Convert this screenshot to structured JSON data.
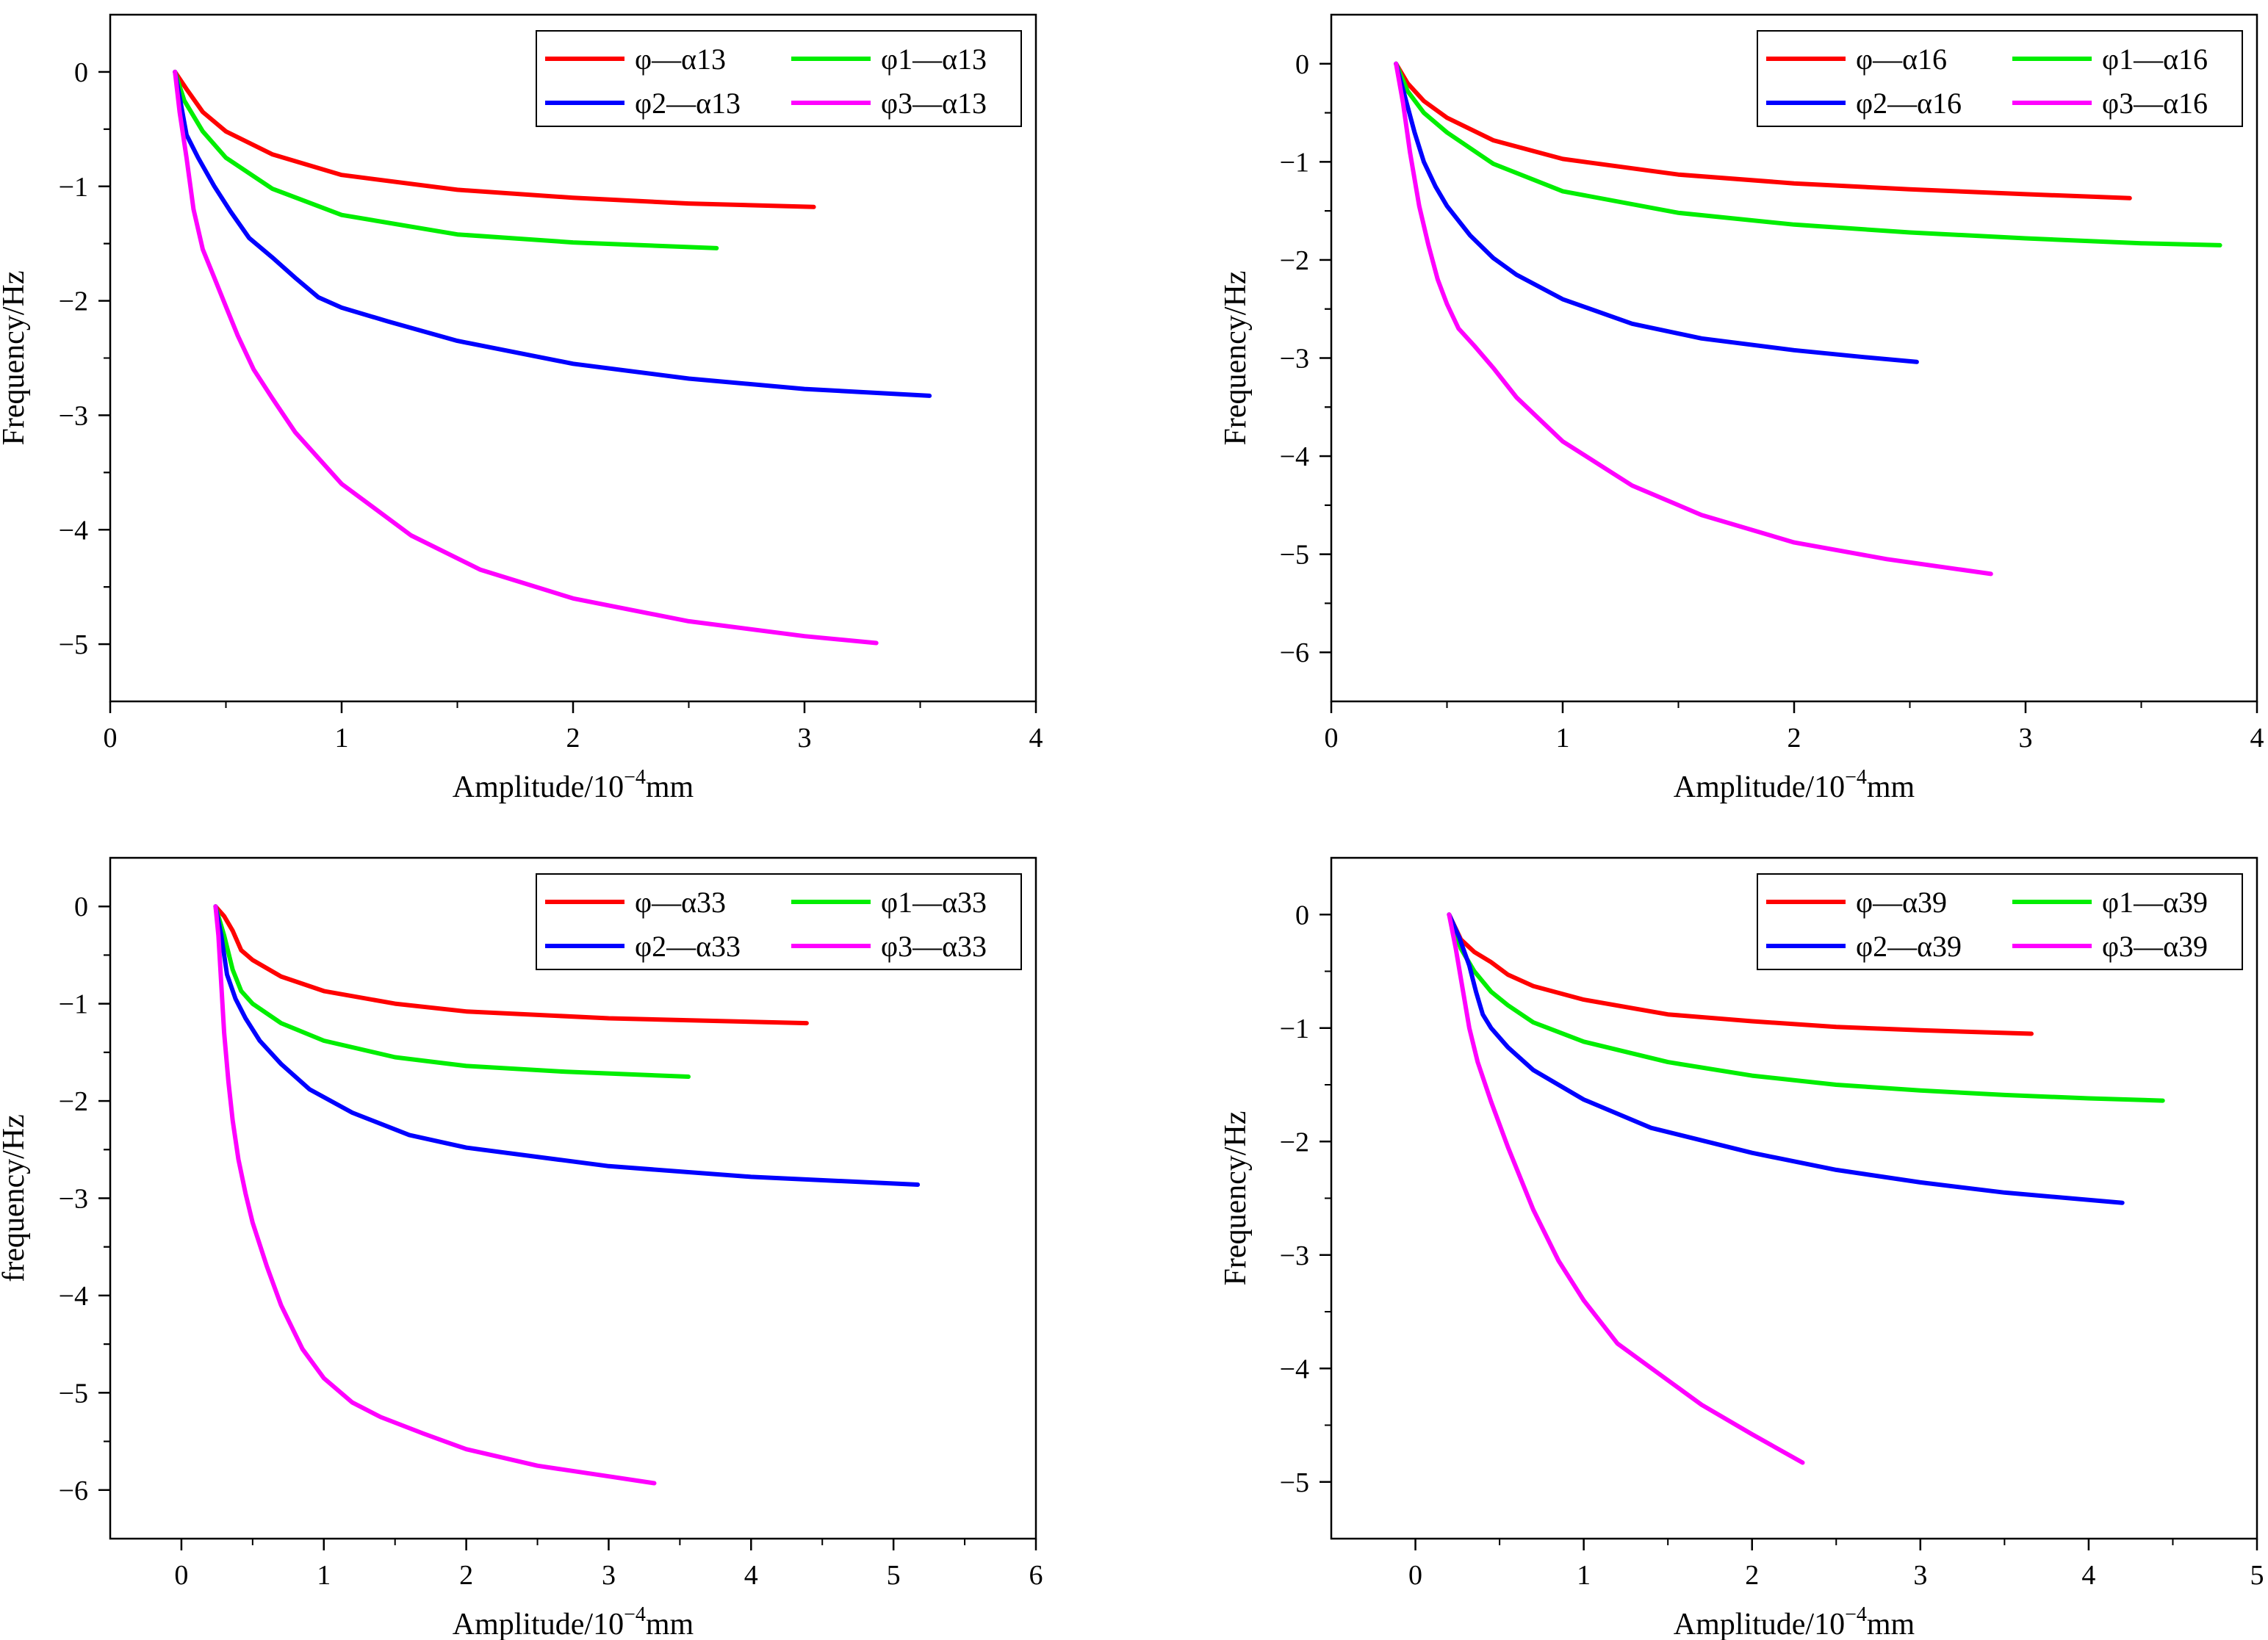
{
  "figure": {
    "chart_data": [
      {
        "type": "line",
        "title": "",
        "xlabel": "Amplitude/10",
        "xlabel_sup": "−4",
        "xlabel_unit": "mm",
        "ylabel": "Frequency/Hz",
        "xlim": [
          0,
          4
        ],
        "ylim": [
          -5.5,
          0.5
        ],
        "xticks": [
          0,
          1,
          2,
          3,
          4
        ],
        "yticks": [
          0,
          -1,
          -2,
          -3,
          -4,
          -5
        ],
        "xtick_labels": [
          "0",
          "1",
          "2",
          "3",
          "4"
        ],
        "ytick_labels": [
          "0",
          "−1",
          "−2",
          "−3",
          "−4",
          "−5"
        ],
        "legend_position": "top-right",
        "series": [
          {
            "name": "φ—α13",
            "color": "#ff0000",
            "x": [
              0.28,
              0.33,
              0.4,
              0.5,
              0.7,
              1.0,
              1.5,
              2.0,
              2.5,
              3.04
            ],
            "y": [
              0,
              -0.15,
              -0.35,
              -0.52,
              -0.72,
              -0.9,
              -1.03,
              -1.1,
              -1.15,
              -1.18
            ]
          },
          {
            "name": "φ1—α13",
            "color": "#00ee00",
            "x": [
              0.28,
              0.32,
              0.4,
              0.5,
              0.7,
              1.0,
              1.5,
              2.0,
              2.62
            ],
            "y": [
              0,
              -0.25,
              -0.52,
              -0.75,
              -1.02,
              -1.25,
              -1.42,
              -1.49,
              -1.54
            ]
          },
          {
            "name": "φ2—α13",
            "color": "#0000ff",
            "x": [
              0.28,
              0.3,
              0.33,
              0.38,
              0.45,
              0.52,
              0.6,
              0.7,
              0.8,
              0.9,
              1.0,
              1.2,
              1.5,
              2.0,
              2.5,
              3.0,
              3.54
            ],
            "y": [
              0,
              -0.22,
              -0.55,
              -0.75,
              -1.0,
              -1.22,
              -1.45,
              -1.62,
              -1.8,
              -1.97,
              -2.06,
              -2.18,
              -2.35,
              -2.55,
              -2.68,
              -2.77,
              -2.83
            ]
          },
          {
            "name": "φ3—α13",
            "color": "#ff00ff",
            "x": [
              0.28,
              0.3,
              0.33,
              0.36,
              0.4,
              0.45,
              0.5,
              0.55,
              0.62,
              0.7,
              0.8,
              1.0,
              1.3,
              1.6,
              2.0,
              2.5,
              3.0,
              3.31
            ],
            "y": [
              0,
              -0.35,
              -0.75,
              -1.2,
              -1.55,
              -1.8,
              -2.05,
              -2.3,
              -2.6,
              -2.85,
              -3.15,
              -3.6,
              -4.05,
              -4.35,
              -4.6,
              -4.8,
              -4.93,
              -4.99
            ]
          }
        ]
      },
      {
        "type": "line",
        "title": "",
        "xlabel": "Amplitude/10",
        "xlabel_sup": "−4",
        "xlabel_unit": "mm",
        "ylabel": "Frequency/Hz",
        "xlim": [
          0,
          4
        ],
        "ylim": [
          -6.5,
          0.5
        ],
        "xticks": [
          0,
          1,
          2,
          3,
          4
        ],
        "yticks": [
          0,
          -1,
          -2,
          -3,
          -4,
          -5,
          -6
        ],
        "xtick_labels": [
          "0",
          "1",
          "2",
          "3",
          "4"
        ],
        "ytick_labels": [
          "0",
          "−1",
          "−2",
          "−3",
          "−4",
          "−5",
          "−6"
        ],
        "legend_position": "top-right",
        "series": [
          {
            "name": "φ—α16",
            "color": "#ff0000",
            "x": [
              0.28,
              0.33,
              0.4,
              0.5,
              0.7,
              1.0,
              1.5,
              2.0,
              2.5,
              3.0,
              3.45
            ],
            "y": [
              0,
              -0.2,
              -0.38,
              -0.55,
              -0.78,
              -0.97,
              -1.13,
              -1.22,
              -1.28,
              -1.33,
              -1.37
            ]
          },
          {
            "name": "φ1—α16",
            "color": "#00ee00",
            "x": [
              0.28,
              0.33,
              0.4,
              0.5,
              0.7,
              1.0,
              1.5,
              2.0,
              2.5,
              3.0,
              3.5,
              3.84
            ],
            "y": [
              0,
              -0.28,
              -0.5,
              -0.7,
              -1.02,
              -1.3,
              -1.52,
              -1.64,
              -1.72,
              -1.78,
              -1.83,
              -1.85
            ]
          },
          {
            "name": "φ2—α16",
            "color": "#0000ff",
            "x": [
              0.28,
              0.32,
              0.36,
              0.4,
              0.45,
              0.5,
              0.6,
              0.7,
              0.8,
              1.0,
              1.3,
              1.6,
              2.0,
              2.3,
              2.53
            ],
            "y": [
              0,
              -0.35,
              -0.7,
              -1.0,
              -1.25,
              -1.45,
              -1.75,
              -1.98,
              -2.15,
              -2.4,
              -2.65,
              -2.8,
              -2.92,
              -2.99,
              -3.04
            ]
          },
          {
            "name": "φ3—α16",
            "color": "#ff00ff",
            "x": [
              0.28,
              0.31,
              0.34,
              0.38,
              0.42,
              0.46,
              0.5,
              0.55,
              0.62,
              0.7,
              0.8,
              1.0,
              1.3,
              1.6,
              2.0,
              2.4,
              2.85
            ],
            "y": [
              0,
              -0.4,
              -0.9,
              -1.45,
              -1.85,
              -2.2,
              -2.45,
              -2.7,
              -2.88,
              -3.1,
              -3.4,
              -3.85,
              -4.3,
              -4.6,
              -4.88,
              -5.05,
              -5.2
            ]
          }
        ]
      },
      {
        "type": "line",
        "title": "",
        "xlabel": "Amplitude/10",
        "xlabel_sup": "−4",
        "xlabel_unit": "mm",
        "ylabel": "frequency/Hz",
        "xlim": [
          -0.5,
          6
        ],
        "ylim": [
          -6.5,
          0.5
        ],
        "xticks": [
          0,
          1,
          2,
          3,
          4,
          5,
          6
        ],
        "yticks": [
          0,
          -1,
          -2,
          -3,
          -4,
          -5,
          -6
        ],
        "xtick_labels": [
          "0",
          "1",
          "2",
          "3",
          "4",
          "5",
          "6"
        ],
        "ytick_labels": [
          "0",
          "−1",
          "−2",
          "−3",
          "−4",
          "−5",
          "−6"
        ],
        "legend_position": "top-right",
        "series": [
          {
            "name": "φ—α33",
            "color": "#ff0000",
            "x": [
              0.24,
              0.3,
              0.36,
              0.42,
              0.5,
              0.7,
              1.0,
              1.5,
              2.0,
              3.0,
              4.39
            ],
            "y": [
              0,
              -0.1,
              -0.25,
              -0.45,
              -0.55,
              -0.72,
              -0.87,
              -1.0,
              -1.08,
              -1.15,
              -1.2
            ]
          },
          {
            "name": "φ1—α33",
            "color": "#00ee00",
            "x": [
              0.24,
              0.3,
              0.36,
              0.42,
              0.5,
              0.7,
              1.0,
              1.5,
              2.0,
              2.7,
              3.56
            ],
            "y": [
              0,
              -0.3,
              -0.65,
              -0.87,
              -1.0,
              -1.2,
              -1.38,
              -1.55,
              -1.64,
              -1.7,
              -1.75
            ]
          },
          {
            "name": "φ2—α33",
            "color": "#0000ff",
            "x": [
              0.24,
              0.28,
              0.32,
              0.38,
              0.45,
              0.55,
              0.7,
              0.9,
              1.2,
              1.6,
              2.0,
              3.0,
              4.0,
              5.17
            ],
            "y": [
              0,
              -0.3,
              -0.7,
              -0.95,
              -1.15,
              -1.38,
              -1.62,
              -1.88,
              -2.12,
              -2.35,
              -2.48,
              -2.67,
              -2.78,
              -2.86
            ]
          },
          {
            "name": "φ3—α33",
            "color": "#ff00ff",
            "x": [
              0.24,
              0.26,
              0.28,
              0.3,
              0.33,
              0.36,
              0.4,
              0.45,
              0.5,
              0.6,
              0.7,
              0.85,
              1.0,
              1.2,
              1.4,
              1.7,
              2.0,
              2.5,
              3.0,
              3.32
            ],
            "y": [
              0,
              -0.3,
              -0.8,
              -1.3,
              -1.8,
              -2.2,
              -2.6,
              -2.95,
              -3.25,
              -3.7,
              -4.1,
              -4.55,
              -4.85,
              -5.1,
              -5.25,
              -5.42,
              -5.58,
              -5.75,
              -5.86,
              -5.93
            ]
          }
        ]
      },
      {
        "type": "line",
        "title": "",
        "xlabel": "Amplitude/10",
        "xlabel_sup": "−4",
        "xlabel_unit": "mm",
        "ylabel": "Frequency/Hz",
        "xlim": [
          -0.5,
          5
        ],
        "ylim": [
          -5.5,
          0.5
        ],
        "xticks": [
          0,
          1,
          2,
          3,
          4,
          5
        ],
        "yticks": [
          0,
          -1,
          -2,
          -3,
          -4,
          -5
        ],
        "xtick_labels": [
          "0",
          "1",
          "2",
          "3",
          "4",
          "5"
        ],
        "ytick_labels": [
          "0",
          "−1",
          "−2",
          "−3",
          "−4",
          "−5"
        ],
        "legend_position": "top-right",
        "series": [
          {
            "name": "φ—α39",
            "color": "#ff0000",
            "x": [
              0.2,
              0.27,
              0.35,
              0.45,
              0.55,
              0.7,
              1.0,
              1.5,
              2.0,
              2.5,
              3.0,
              3.66
            ],
            "y": [
              0,
              -0.22,
              -0.33,
              -0.42,
              -0.53,
              -0.63,
              -0.75,
              -0.88,
              -0.94,
              -0.99,
              -1.02,
              -1.05
            ]
          },
          {
            "name": "φ1—α39",
            "color": "#00ee00",
            "x": [
              0.2,
              0.27,
              0.35,
              0.45,
              0.55,
              0.7,
              1.0,
              1.5,
              2.0,
              2.5,
              3.0,
              3.5,
              4.0,
              4.44
            ],
            "y": [
              0,
              -0.3,
              -0.5,
              -0.68,
              -0.8,
              -0.95,
              -1.12,
              -1.3,
              -1.42,
              -1.5,
              -1.55,
              -1.59,
              -1.62,
              -1.64
            ]
          },
          {
            "name": "φ2—α39",
            "color": "#0000ff",
            "x": [
              0.2,
              0.26,
              0.32,
              0.36,
              0.4,
              0.45,
              0.55,
              0.7,
              1.0,
              1.4,
              2.0,
              2.5,
              3.0,
              3.5,
              4.2
            ],
            "y": [
              0,
              -0.2,
              -0.45,
              -0.68,
              -0.88,
              -1.0,
              -1.17,
              -1.37,
              -1.63,
              -1.88,
              -2.1,
              -2.25,
              -2.36,
              -2.45,
              -2.54
            ]
          },
          {
            "name": "φ3—α39",
            "color": "#ff00ff",
            "x": [
              0.2,
              0.24,
              0.28,
              0.32,
              0.37,
              0.45,
              0.55,
              0.7,
              0.85,
              1.0,
              1.2,
              1.45,
              1.7,
              2.0,
              2.3
            ],
            "y": [
              0,
              -0.3,
              -0.65,
              -1.0,
              -1.3,
              -1.65,
              -2.05,
              -2.6,
              -3.05,
              -3.4,
              -3.78,
              -4.05,
              -4.32,
              -4.58,
              -4.83
            ]
          }
        ]
      }
    ]
  }
}
